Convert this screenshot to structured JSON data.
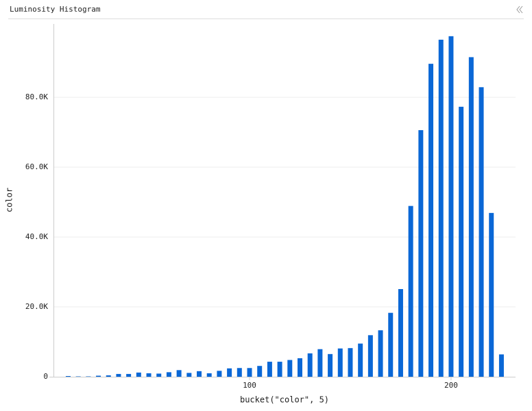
{
  "panel_title": "Luminosity Histogram",
  "chart_data": {
    "type": "bar",
    "x_label": "bucket(\"color\", 5)",
    "y_label": "color",
    "x": [
      10,
      15,
      20,
      25,
      30,
      35,
      40,
      45,
      50,
      55,
      60,
      65,
      70,
      75,
      80,
      85,
      90,
      95,
      100,
      105,
      110,
      115,
      120,
      125,
      130,
      135,
      140,
      145,
      150,
      155,
      160,
      165,
      170,
      175,
      180,
      185,
      190,
      195,
      200,
      205,
      210,
      215,
      220,
      225
    ],
    "values": [
      200,
      100,
      100,
      300,
      400,
      800,
      800,
      1200,
      1000,
      900,
      1300,
      1900,
      1100,
      1600,
      1000,
      1700,
      2400,
      2500,
      2500,
      3100,
      4300,
      4300,
      4800,
      5300,
      6700,
      7900,
      6500,
      8100,
      8200,
      9500,
      11900,
      13300,
      18300,
      25100,
      48900,
      70600,
      89600,
      96500,
      97500,
      77300,
      91500,
      82900,
      46900,
      6400
    ],
    "color": "#0a67d6",
    "xlim": [
      2.7,
      232
    ],
    "xticks": [
      100,
      200
    ],
    "ylim": [
      0,
      101000
    ],
    "yticks": [
      0,
      {
        "value": 20000,
        "label": "20.0K"
      },
      {
        "value": 40000,
        "label": "40.0K"
      },
      {
        "value": 60000,
        "label": "60.0K"
      },
      {
        "value": 80000,
        "label": "80.0K"
      }
    ],
    "grid": true
  }
}
